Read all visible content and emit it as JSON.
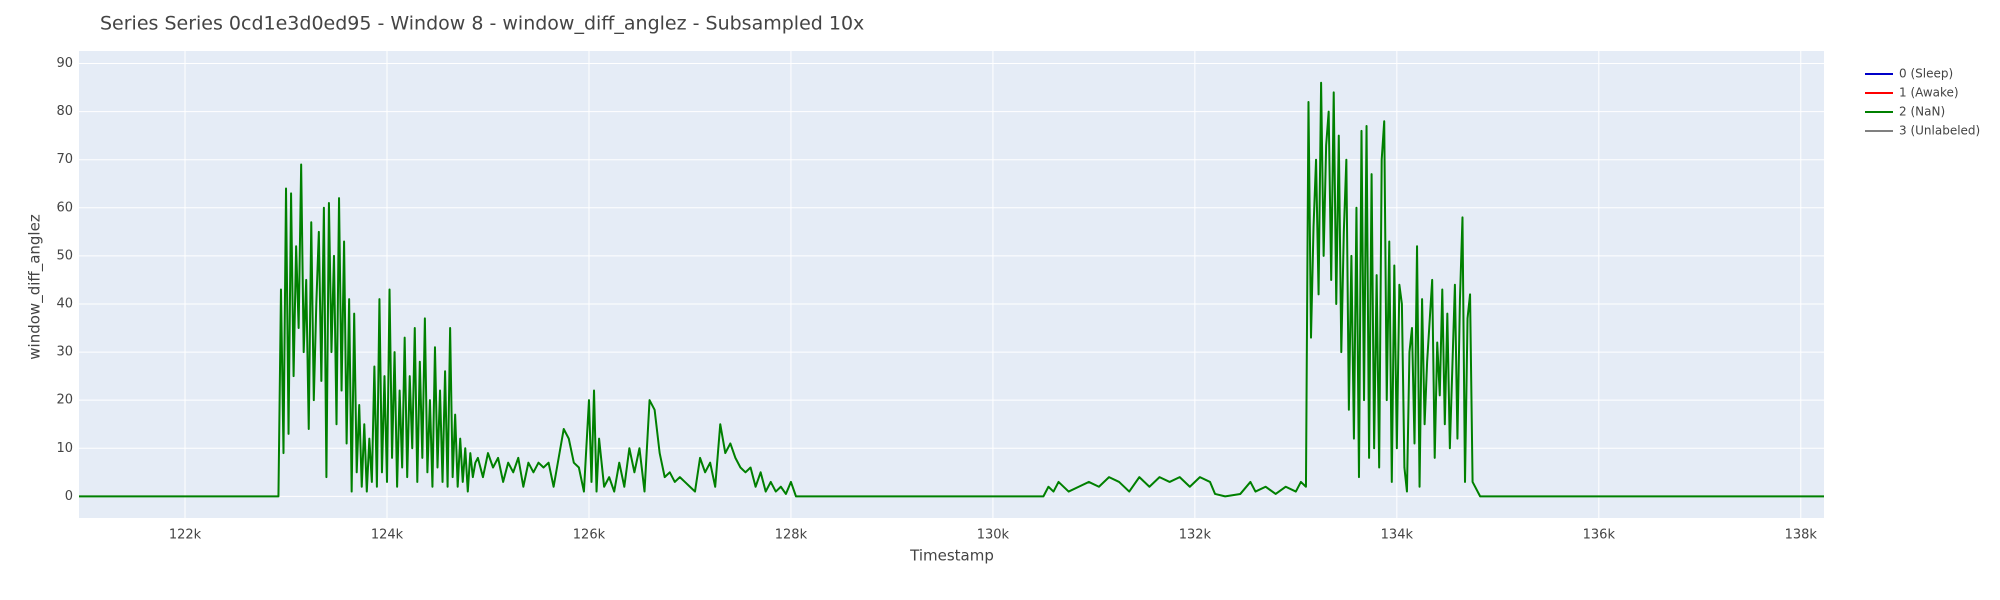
{
  "chart_data": {
    "type": "line",
    "title": "Series Series 0cd1e3d0ed95 - Window 8 - window_diff_anglez - Subsampled 10x",
    "x_label": "Timestamp",
    "y_label": "window_diff_anglez",
    "xlim": [
      120950,
      138230
    ],
    "ylim": [
      -4.5,
      92.6
    ],
    "xticks": [
      {
        "value": 122000,
        "label": "122k"
      },
      {
        "value": 124000,
        "label": "124k"
      },
      {
        "value": 126000,
        "label": "126k"
      },
      {
        "value": 128000,
        "label": "128k"
      },
      {
        "value": 130000,
        "label": "130k"
      },
      {
        "value": 132000,
        "label": "132k"
      },
      {
        "value": 134000,
        "label": "134k"
      },
      {
        "value": 136000,
        "label": "136k"
      },
      {
        "value": 138000,
        "label": "138k"
      }
    ],
    "yticks": [
      0,
      10,
      20,
      30,
      40,
      50,
      60,
      70,
      80,
      90
    ],
    "grid": true,
    "legend": "right",
    "series": [
      {
        "name": "0 (Sleep)",
        "color": "#0000c8",
        "x": [],
        "values": []
      },
      {
        "name": "1 (Awake)",
        "color": "#ff0000",
        "x": [],
        "values": []
      },
      {
        "name": "2 (NaN)",
        "color": "#008000",
        "x": [
          120950,
          122900,
          122925,
          122950,
          122975,
          123000,
          123025,
          123050,
          123075,
          123100,
          123125,
          123150,
          123175,
          123200,
          123225,
          123250,
          123275,
          123300,
          123325,
          123350,
          123375,
          123400,
          123425,
          123450,
          123475,
          123500,
          123525,
          123550,
          123575,
          123600,
          123625,
          123650,
          123675,
          123700,
          123725,
          123750,
          123775,
          123800,
          123825,
          123850,
          123875,
          123900,
          123925,
          123950,
          123975,
          124000,
          124025,
          124050,
          124075,
          124100,
          124125,
          124150,
          124175,
          124200,
          124225,
          124250,
          124275,
          124300,
          124325,
          124350,
          124375,
          124400,
          124425,
          124450,
          124475,
          124500,
          124525,
          124550,
          124575,
          124600,
          124625,
          124650,
          124675,
          124700,
          124725,
          124750,
          124775,
          124800,
          124825,
          124850,
          124875,
          124900,
          124950,
          125000,
          125050,
          125100,
          125150,
          125200,
          125250,
          125300,
          125350,
          125400,
          125450,
          125500,
          125550,
          125600,
          125650,
          125700,
          125750,
          125800,
          125850,
          125900,
          125950,
          126000,
          126025,
          126050,
          126075,
          126100,
          126150,
          126200,
          126250,
          126300,
          126350,
          126400,
          126450,
          126500,
          126550,
          126600,
          126650,
          126700,
          126750,
          126800,
          126850,
          126900,
          126950,
          127000,
          127050,
          127100,
          127150,
          127200,
          127250,
          127300,
          127350,
          127400,
          127450,
          127500,
          127550,
          127600,
          127650,
          127700,
          127750,
          127800,
          127850,
          127900,
          127950,
          128000,
          128050,
          130500,
          130550,
          130600,
          130650,
          130750,
          130850,
          130950,
          131050,
          131150,
          131250,
          131350,
          131450,
          131550,
          131650,
          131750,
          131850,
          131950,
          132050,
          132150,
          132200,
          132300,
          132450,
          132550,
          132600,
          132700,
          132800,
          132900,
          133000,
          133050,
          133100,
          133125,
          133150,
          133175,
          133200,
          133225,
          133250,
          133275,
          133300,
          133325,
          133350,
          133375,
          133400,
          133425,
          133450,
          133475,
          133500,
          133525,
          133550,
          133575,
          133600,
          133625,
          133650,
          133675,
          133700,
          133725,
          133750,
          133775,
          133800,
          133825,
          133850,
          133875,
          133900,
          133925,
          133950,
          133975,
          134000,
          134025,
          134050,
          134075,
          134100,
          134125,
          134150,
          134175,
          134200,
          134225,
          134250,
          134275,
          134300,
          134350,
          134375,
          134400,
          134425,
          134450,
          134475,
          134500,
          134525,
          134550,
          134575,
          134600,
          134625,
          134650,
          134675,
          134700,
          134725,
          134750,
          134825,
          138230
        ],
        "values": [
          0,
          0,
          0,
          43,
          9,
          64,
          13,
          63,
          25,
          52,
          35,
          69,
          30,
          45,
          14,
          57,
          20,
          40,
          55,
          24,
          60,
          4,
          61,
          30,
          50,
          15,
          62,
          22,
          53,
          11,
          41,
          1,
          38,
          5,
          19,
          2,
          15,
          1,
          12,
          3,
          27,
          2,
          41,
          5,
          25,
          3,
          43,
          8,
          30,
          2,
          22,
          6,
          33,
          4,
          25,
          10,
          35,
          3,
          28,
          8,
          37,
          5,
          20,
          2,
          31,
          6,
          22,
          3,
          26,
          2,
          35,
          4,
          17,
          2,
          12,
          3,
          10,
          1,
          9,
          4,
          7,
          8,
          4,
          9,
          6,
          8,
          3,
          7,
          5,
          8,
          2,
          7,
          5,
          7,
          6,
          7,
          2,
          8,
          14,
          12,
          7,
          6,
          1,
          20,
          3,
          22,
          1,
          12,
          2,
          4,
          1,
          7,
          2,
          10,
          5,
          10,
          1,
          20,
          18,
          9,
          4,
          5,
          3,
          4,
          3,
          2,
          1,
          8,
          5,
          7,
          2,
          15,
          9,
          11,
          8,
          6,
          5,
          6,
          2,
          5,
          1,
          3,
          1,
          2,
          0.5,
          3,
          0,
          0,
          2,
          1,
          3,
          1,
          2,
          3,
          2,
          4,
          3,
          1,
          4,
          2,
          4,
          3,
          4,
          2,
          4,
          3,
          0.5,
          0,
          0.5,
          3,
          1,
          2,
          0.5,
          2,
          1,
          3,
          2,
          82,
          33,
          56,
          70,
          42,
          86,
          50,
          73,
          80,
          45,
          84,
          40,
          75,
          30,
          55,
          70,
          18,
          50,
          12,
          60,
          4,
          76,
          20,
          77,
          8,
          67,
          10,
          46,
          6,
          70,
          78,
          20,
          53,
          3,
          48,
          10,
          44,
          40,
          6,
          1,
          30,
          35,
          11,
          52,
          2,
          41,
          15,
          28,
          45,
          8,
          32,
          21,
          43,
          15,
          38,
          10,
          27,
          44,
          12,
          41,
          58,
          3,
          37,
          42,
          3,
          0,
          0
        ]
      },
      {
        "name": "3 (Unlabeled)",
        "color": "#808080",
        "x": [],
        "values": []
      }
    ]
  }
}
